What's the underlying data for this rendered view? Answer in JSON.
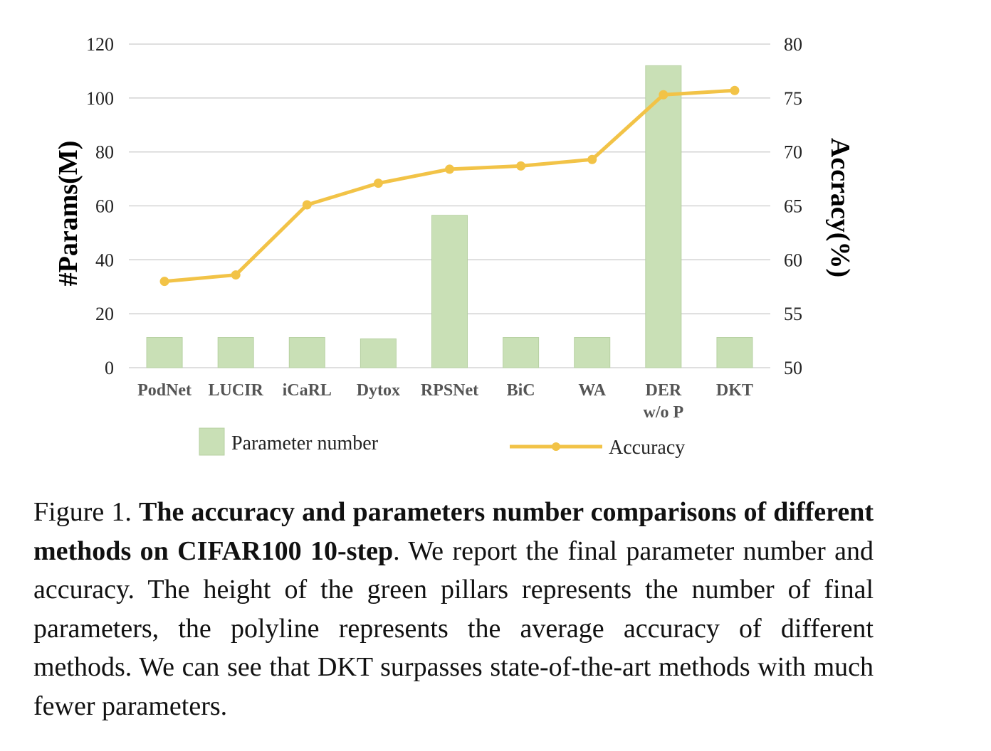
{
  "chart_data": {
    "type": "bar+line",
    "categories": [
      "PodNet",
      "LUCIR",
      "iCaRL",
      "Dytox",
      "RPSNet",
      "BiC",
      "WA",
      "DER\nw/o P",
      "DKT"
    ],
    "series": [
      {
        "name": "Parameter number",
        "type": "bar",
        "axis": "left",
        "values": [
          11.2,
          11.2,
          11.2,
          10.7,
          56.5,
          11.2,
          11.2,
          112.0,
          11.2
        ]
      },
      {
        "name": "Accuracy",
        "type": "line",
        "axis": "right",
        "values": [
          58.0,
          58.6,
          65.1,
          67.1,
          68.4,
          68.7,
          69.3,
          75.3,
          75.7
        ]
      }
    ],
    "ylabel": "#Params(M)",
    "ylabel_right": "Accracy(%)",
    "ylim": [
      0,
      120
    ],
    "ylim_right": [
      50,
      80
    ],
    "yticks": [
      "0",
      "20",
      "40",
      "60",
      "80",
      "100",
      "120"
    ],
    "yticks_right": [
      "50",
      "55",
      "60",
      "65",
      "70",
      "75",
      "80"
    ],
    "grid": true,
    "legend_position": "bottom",
    "colors": {
      "bar": "#c9e0b6",
      "bar_border": "#b7d1a2",
      "line": "#f2c347",
      "grid": "#cccccc"
    }
  },
  "caption": {
    "label": "Figure 1.",
    "bold": "The accuracy and parameters number comparisons of different methods on CIFAR100 10-step",
    "text": ". We report the final parameter number and accuracy.  The height of the green pillars represents the number of final parameters, the polyline represents the average accuracy of different methods.  We can see that DKT surpasses state-of-the-art methods with much fewer parameters."
  }
}
